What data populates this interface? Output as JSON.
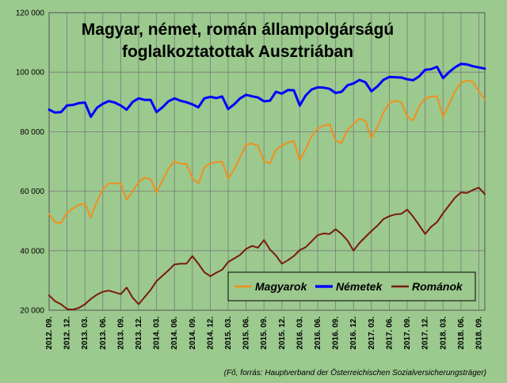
{
  "chart_data": {
    "type": "line",
    "title_line1": "Magyar, német, román állampolgárságú",
    "title_line2": "foglalkoztatottak Ausztriában",
    "source": "(Fő, forrás: Hauptverband der Österreichischen Sozialversicherungsträger)",
    "ylim": [
      20000,
      120000
    ],
    "yticks": [
      20000,
      40000,
      60000,
      80000,
      100000,
      120000
    ],
    "ytick_labels": [
      "20 000",
      "40 000",
      "60 000",
      "80 000",
      "100 000",
      "120 000"
    ],
    "grid": true,
    "legend_position": "bottom-right",
    "xtick_labels": [
      "2012. 09.",
      "2012. 12.",
      "2013. 03.",
      "2013. 06.",
      "2013. 09.",
      "2013. 12.",
      "2014. 03.",
      "2014. 06.",
      "2014. 09.",
      "2014. 12.",
      "2015. 03.",
      "2015. 06.",
      "2015. 09.",
      "2015. 12.",
      "2016. 03.",
      "2016. 06.",
      "2016. 09.",
      "2016. 12.",
      "2017. 03.",
      "2017. 06.",
      "2017. 09.",
      "2017. 12.",
      "2018. 03.",
      "2018. 06.",
      "2018. 09."
    ],
    "x": [
      "2012. 09.",
      "2012. 10.",
      "2012. 11.",
      "2012. 12.",
      "2013. 01.",
      "2013. 02.",
      "2013. 03.",
      "2013. 04.",
      "2013. 05.",
      "2013. 06.",
      "2013. 07.",
      "2013. 08.",
      "2013. 09.",
      "2013. 10.",
      "2013. 11.",
      "2013. 12.",
      "2014. 01.",
      "2014. 02.",
      "2014. 03.",
      "2014. 04.",
      "2014. 05.",
      "2014. 06.",
      "2014. 07.",
      "2014. 08.",
      "2014. 09.",
      "2014. 10.",
      "2014. 11.",
      "2014. 12.",
      "2015. 01.",
      "2015. 02.",
      "2015. 03.",
      "2015. 04.",
      "2015. 05.",
      "2015. 06.",
      "2015. 07.",
      "2015. 08.",
      "2015. 09.",
      "2015. 10.",
      "2015. 11.",
      "2015. 12.",
      "2016. 01.",
      "2016. 02.",
      "2016. 03.",
      "2016. 04.",
      "2016. 05.",
      "2016. 06.",
      "2016. 07.",
      "2016. 08.",
      "2016. 09.",
      "2016. 10.",
      "2016. 11.",
      "2016. 12.",
      "2017. 01.",
      "2017. 02.",
      "2017. 03.",
      "2017. 04.",
      "2017. 05.",
      "2017. 06.",
      "2017. 07.",
      "2017. 08.",
      "2017. 09.",
      "2017. 10.",
      "2017. 11.",
      "2017. 12.",
      "2018. 01.",
      "2018. 02.",
      "2018. 03.",
      "2018. 04.",
      "2018. 05.",
      "2018. 06.",
      "2018. 07.",
      "2018. 08.",
      "2018. 09.",
      "2018. 10."
    ],
    "series": [
      {
        "name": "Magyarok",
        "color": "#f0901c",
        "width": 2,
        "values": [
          52300,
          49600,
          49300,
          52800,
          54200,
          55400,
          55800,
          51200,
          56600,
          60600,
          62600,
          62600,
          62600,
          57200,
          60000,
          63000,
          64600,
          64000,
          59600,
          63600,
          67600,
          70000,
          69200,
          69200,
          64400,
          62600,
          68000,
          69300,
          69800,
          69900,
          64200,
          67400,
          71400,
          75600,
          76000,
          75200,
          70000,
          69300,
          74000,
          75300,
          76400,
          76800,
          70400,
          74200,
          78600,
          81000,
          82000,
          82500,
          77000,
          76200,
          80600,
          82600,
          84400,
          83600,
          77800,
          81600,
          86400,
          89600,
          90400,
          90000,
          85000,
          83800,
          88600,
          91200,
          91800,
          91900,
          85000,
          89200,
          93600,
          96400,
          97200,
          96800,
          93600,
          90800
        ]
      },
      {
        "name": "Németek",
        "color": "#0000ff",
        "width": 3,
        "values": [
          87400,
          86400,
          86600,
          88800,
          89000,
          89600,
          89800,
          85000,
          88000,
          89400,
          90300,
          89800,
          88800,
          87400,
          90000,
          91200,
          90700,
          90700,
          86600,
          88200,
          90200,
          91200,
          90400,
          89900,
          89200,
          88200,
          91200,
          91700,
          91300,
          91800,
          87600,
          89200,
          91200,
          92400,
          91900,
          91500,
          90200,
          90400,
          93400,
          92800,
          94000,
          93900,
          88800,
          92200,
          94200,
          94900,
          94800,
          94400,
          93000,
          93400,
          95600,
          96200,
          97400,
          96600,
          93600,
          95200,
          97400,
          98400,
          98300,
          98200,
          97600,
          97300,
          98600,
          100800,
          101000,
          101800,
          98000,
          100000,
          101600,
          102800,
          102600,
          102000,
          101600,
          101200
        ]
      },
      {
        "name": "Románok",
        "color": "#7a1a0c",
        "width": 2,
        "values": [
          25000,
          23000,
          22000,
          20400,
          20200,
          20800,
          22000,
          23800,
          25200,
          26200,
          26600,
          26000,
          25400,
          27600,
          24200,
          22000,
          24400,
          26800,
          29800,
          31600,
          33400,
          35400,
          35600,
          35600,
          38200,
          35600,
          32800,
          31400,
          32600,
          33600,
          36200,
          37400,
          38600,
          40600,
          41600,
          41000,
          43600,
          40400,
          38400,
          35600,
          36800,
          38200,
          40200,
          41200,
          43200,
          45200,
          45800,
          45600,
          47200,
          45600,
          43400,
          40000,
          42600,
          44600,
          46600,
          48400,
          50600,
          51600,
          52200,
          52400,
          53800,
          51400,
          48600,
          45600,
          48000,
          49600,
          52600,
          55200,
          57800,
          59600,
          59400,
          60400,
          61200,
          59000
        ]
      }
    ]
  }
}
